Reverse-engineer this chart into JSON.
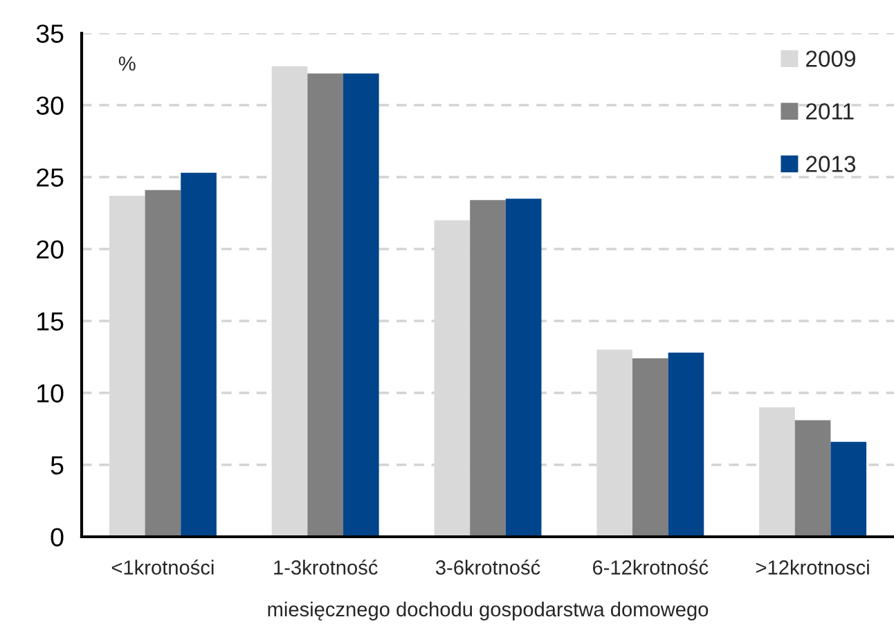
{
  "chart_data": {
    "type": "bar",
    "categories": [
      "<1krotności",
      "1-3krotność",
      "3-6krotność",
      "6-12krotność",
      ">12krotnosci"
    ],
    "series": [
      {
        "name": "2009",
        "color": "#d9d9d9",
        "values": [
          23.7,
          32.7,
          22.0,
          13.0,
          9.0
        ]
      },
      {
        "name": "2011",
        "color": "#808080",
        "values": [
          24.1,
          32.2,
          23.4,
          12.4,
          8.1
        ]
      },
      {
        "name": "2013",
        "color": "#00458c",
        "values": [
          25.3,
          32.2,
          23.5,
          12.8,
          6.6
        ]
      }
    ],
    "xlabel": "miesięcznego dochodu gospodarstwa domowego",
    "annotations": [
      "%"
    ],
    "ylim": [
      0,
      35
    ],
    "yticks": [
      0,
      5,
      10,
      15,
      20,
      25,
      30,
      35
    ],
    "grid": "y",
    "legend": "top right"
  }
}
